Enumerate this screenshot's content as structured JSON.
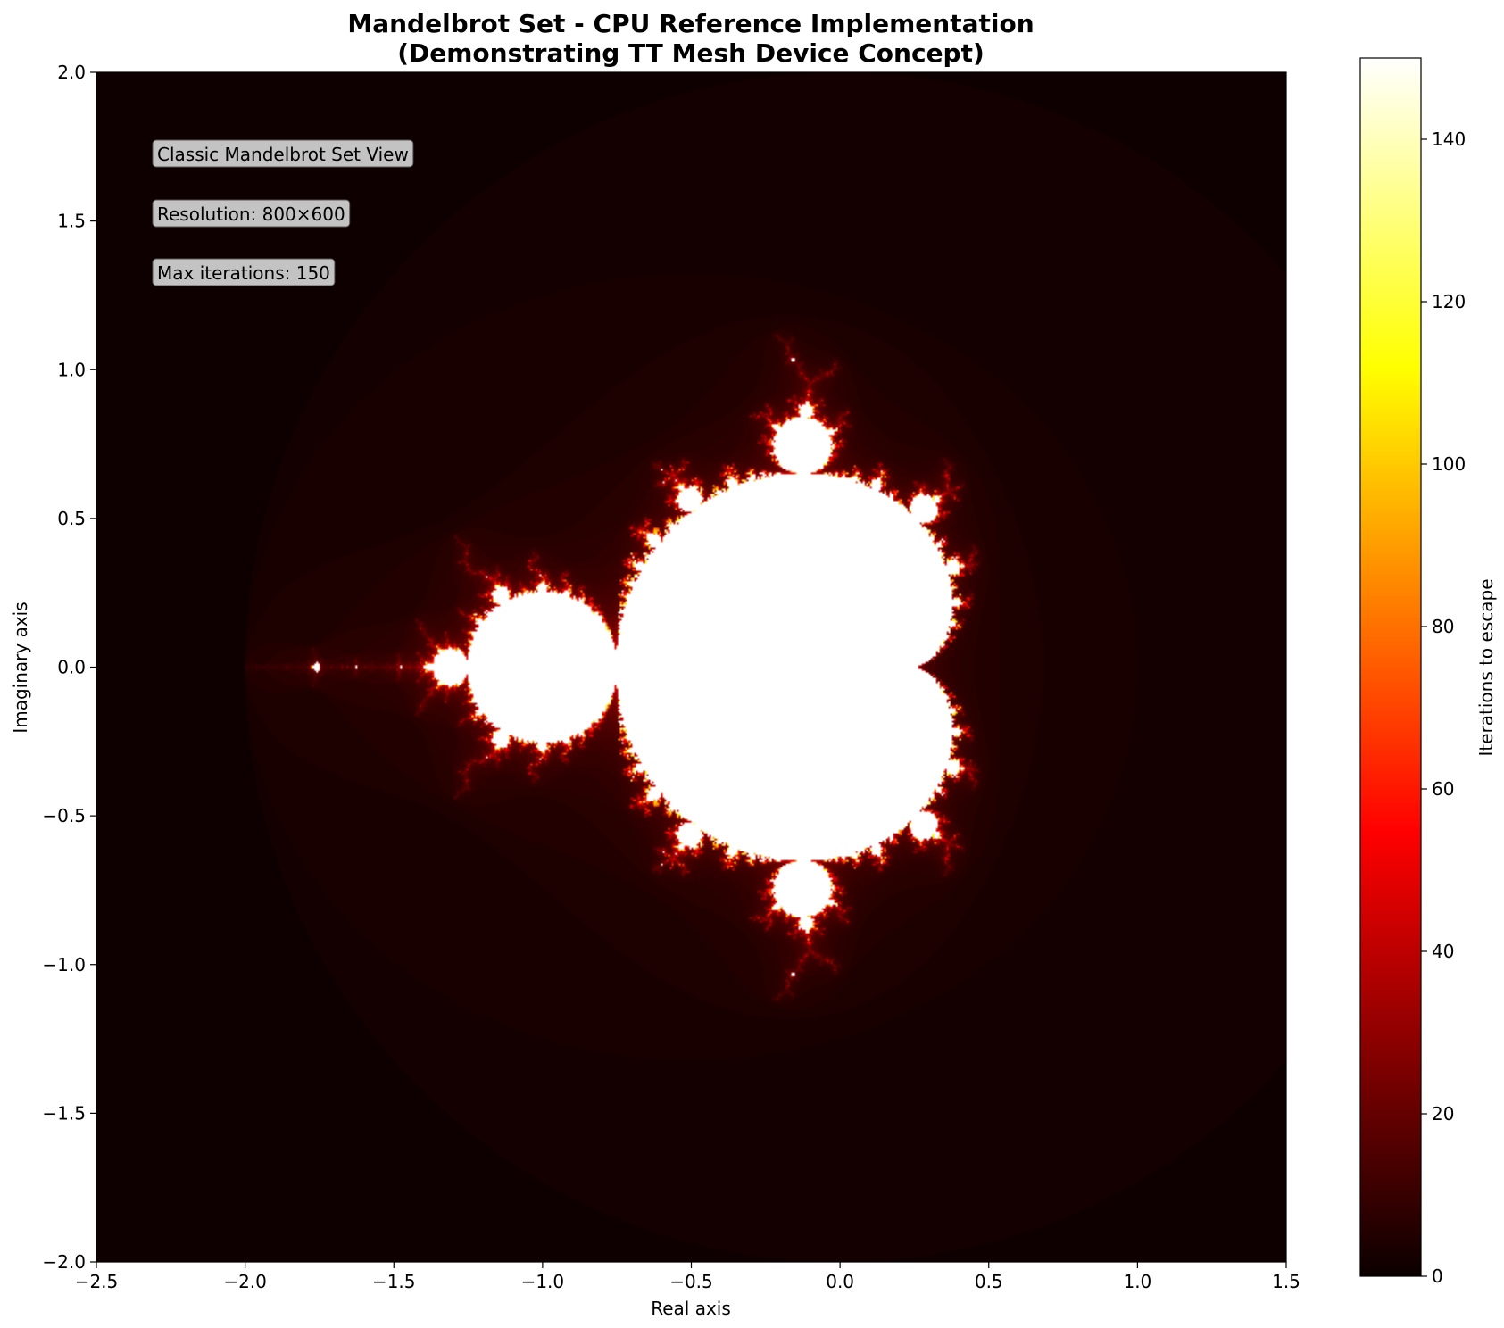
{
  "chart_data": {
    "type": "heatmap",
    "title_line1": "Mandelbrot Set - CPU Reference Implementation",
    "title_line2": "(Demonstrating TT Mesh Device Concept)",
    "xlabel": "Real axis",
    "ylabel": "Imaginary axis",
    "xlim": [
      -2.5,
      1.5
    ],
    "ylim": [
      -2.0,
      2.0
    ],
    "xticks": [
      -2.5,
      -2.0,
      -1.5,
      -1.0,
      -0.5,
      0.0,
      0.5,
      1.0,
      1.5
    ],
    "xtick_labels": [
      "−2.5",
      "−2.0",
      "−1.5",
      "−1.0",
      "−0.5",
      "0.0",
      "0.5",
      "1.0",
      "1.5"
    ],
    "yticks": [
      2.0,
      1.5,
      1.0,
      0.5,
      0.0,
      -0.5,
      -1.0,
      -1.5,
      -2.0
    ],
    "ytick_labels": [
      "2.0",
      "1.5",
      "1.0",
      "0.5",
      "0.0",
      "−0.5",
      "−1.0",
      "−1.5",
      "−2.0"
    ],
    "colormap": "hot",
    "max_iterations": 150,
    "grid": false,
    "colorbar": {
      "label": "Iterations to escape",
      "range": [
        0,
        150
      ],
      "ticks": [
        0,
        20,
        40,
        60,
        80,
        100,
        120,
        140
      ],
      "tick_labels": [
        "0",
        "20",
        "40",
        "60",
        "80",
        "100",
        "120",
        "140"
      ]
    },
    "annotations": [
      "Classic Mandelbrot Set View",
      "Resolution: 800×600",
      "Max iterations: 150"
    ],
    "colors": {
      "background_dark": "#0b0000",
      "set_interior": "#fffff5",
      "annotation_box": "#d8d8d8"
    }
  }
}
